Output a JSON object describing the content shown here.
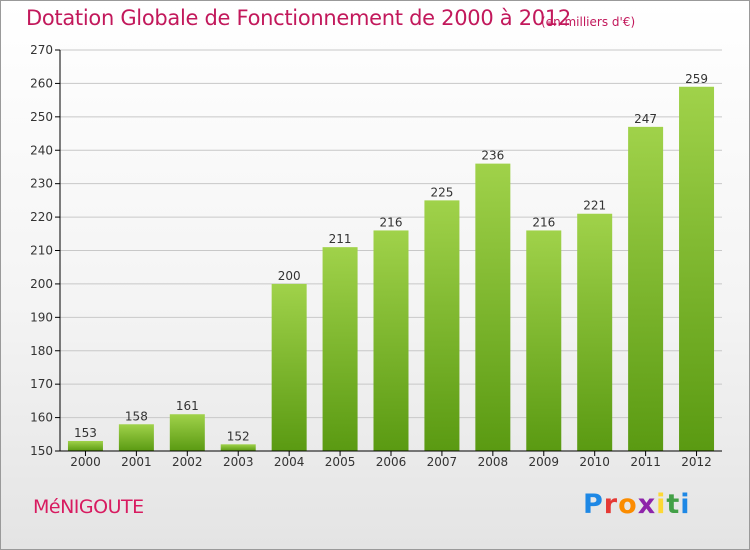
{
  "header": {
    "title": "Dotation Globale de Fonctionnement de 2000 à 2012",
    "unit": "(en milliers d'€)"
  },
  "footer": {
    "commune": "MéNIGOUTE",
    "logo_letters": [
      "P",
      "r",
      "o",
      "x",
      "i",
      "t",
      "i"
    ],
    "logo_colors": [
      "#1e88e5",
      "#e53935",
      "#fb8c00",
      "#8e24aa",
      "#fdd835",
      "#43a047",
      "#1e88e5"
    ]
  },
  "colors": {
    "title": "#c2185b",
    "bar_light": "#9ccc45",
    "bar_dark": "#5a9a12",
    "grid": "#c8c8c8",
    "axis": "#000000"
  },
  "chart_data": {
    "type": "bar",
    "categories": [
      "2000",
      "2001",
      "2002",
      "2003",
      "2004",
      "2005",
      "2006",
      "2007",
      "2008",
      "2009",
      "2010",
      "2011",
      "2012"
    ],
    "values": [
      153,
      158,
      161,
      152,
      200,
      211,
      216,
      225,
      236,
      216,
      221,
      247,
      259
    ],
    "ylim": [
      150,
      270
    ],
    "yticks": [
      150,
      160,
      170,
      180,
      190,
      200,
      210,
      220,
      230,
      240,
      250,
      260,
      270
    ],
    "grid": true,
    "legend": "none",
    "title": "Dotation Globale de Fonctionnement de 2000 à 2012",
    "subtitle": "(en milliers d'€)",
    "xlabel": "",
    "ylabel": ""
  }
}
